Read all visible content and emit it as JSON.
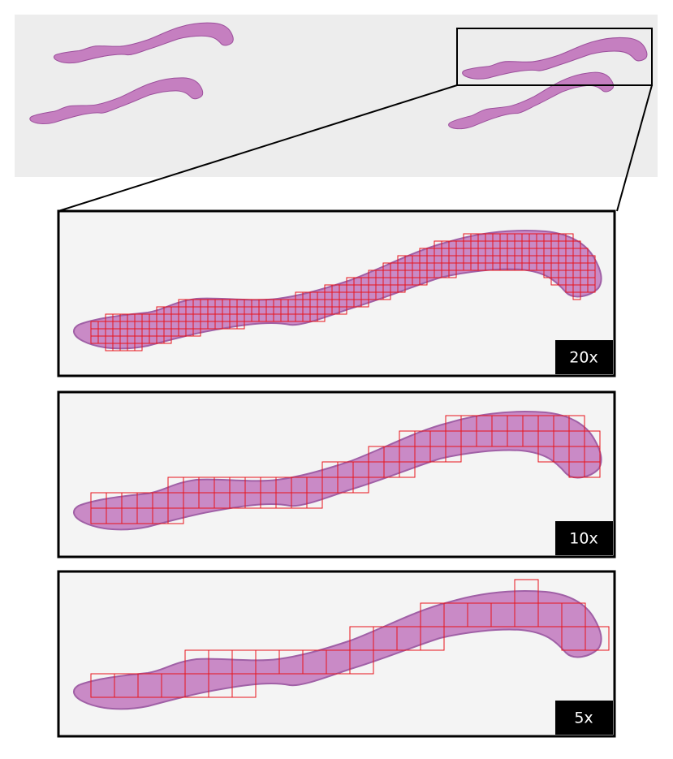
{
  "panels": [
    {
      "label": "20x"
    },
    {
      "label": "10x"
    },
    {
      "label": "5x"
    }
  ]
}
